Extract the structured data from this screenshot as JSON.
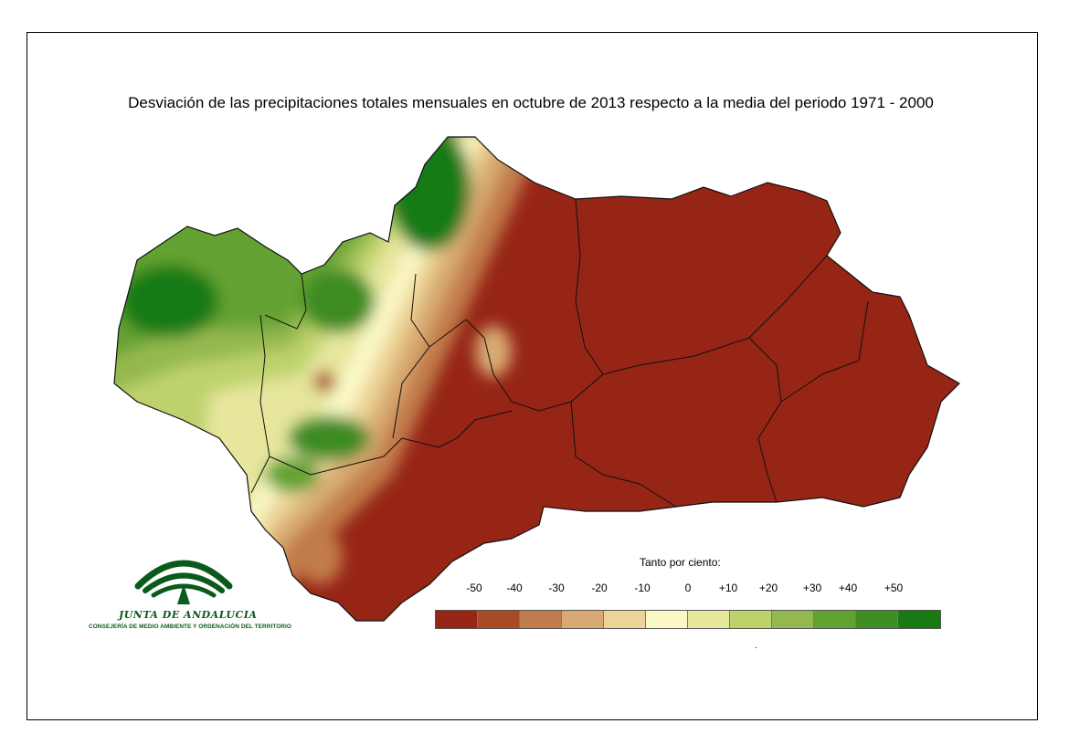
{
  "title": "Desviación de las precipitaciones totales mensuales en octubre de 2013 respecto a la media del periodo 1971 - 2000",
  "legend": {
    "caption": "Tanto por ciento:",
    "labels": [
      "-50",
      "-40",
      "-30",
      "-20",
      "-10",
      "0",
      "+10",
      "+20",
      "+30",
      "+40",
      "+50"
    ],
    "colors": [
      "#962516",
      "#a84a22",
      "#c27c4c",
      "#d8aa72",
      "#ecd496",
      "#fbf8c8",
      "#e6e69c",
      "#bed26c",
      "#94b850",
      "#63a230",
      "#3e8c24",
      "#197a12"
    ],
    "footnote": "."
  },
  "logo": {
    "name": "JUNTA DE ANDALUCIA",
    "subtitle": "CONSEJERÍA DE MEDIO AMBIENTE Y ORDENACIÓN DEL TERRITORIO",
    "color": "#0a5a1c"
  },
  "map": {
    "region": "Andalucía",
    "dry_color": "#962516",
    "wet_color": "#197a12",
    "border_color": "#111111"
  }
}
